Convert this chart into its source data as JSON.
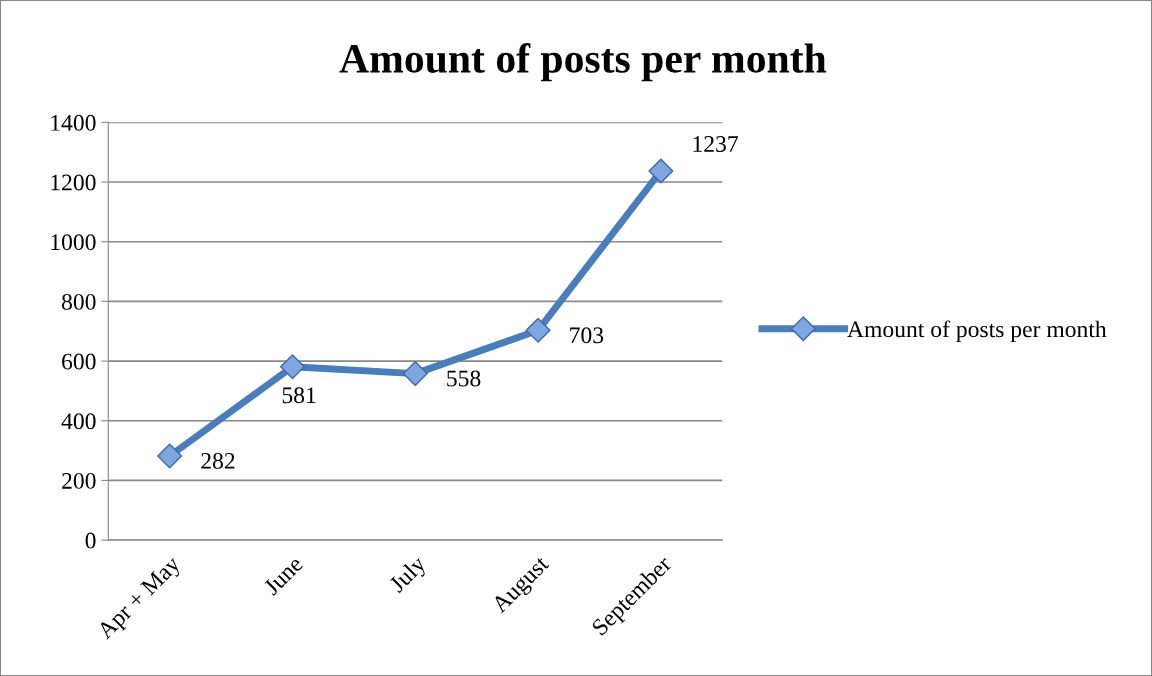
{
  "chart_data": {
    "type": "line",
    "title": "Amount of posts per month",
    "categories": [
      "Apr + May",
      "June",
      "July",
      "August",
      "September"
    ],
    "series": [
      {
        "name": "Amount of posts per month",
        "color": "#4a7ebb",
        "values": [
          282,
          581,
          558,
          703,
          1237
        ]
      }
    ],
    "ylim": [
      0,
      1400
    ],
    "yticks": [
      0,
      200,
      400,
      600,
      800,
      1000,
      1200,
      1400
    ],
    "grid": "y",
    "legend": "right",
    "marker": "diamond",
    "line_style": "solid",
    "data_labels": true
  }
}
